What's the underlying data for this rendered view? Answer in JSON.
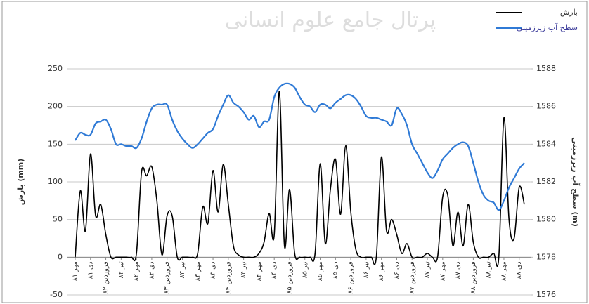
{
  "chart_data": {
    "type": "line",
    "watermark": "پرتال جامع علوم انسانی",
    "ylabel": "بارش (mm)",
    "y2label": "سطح آب زیرزمینی (m)",
    "categories": [
      "مهر ۸۱",
      null,
      null,
      "دی ۸۱",
      null,
      null,
      "فروردین ۸۲",
      null,
      null,
      "تیر ۸۲",
      null,
      null,
      "مهر ۸۲",
      null,
      null,
      "دی ۸۲",
      null,
      null,
      "فروردین ۸۳",
      null,
      null,
      "تیر ۸۳",
      null,
      null,
      "مهر ۸۳",
      null,
      null,
      "دی ۸۳",
      null,
      null,
      "فروردین ۸۴",
      null,
      null,
      "تیر ۸۴",
      null,
      null,
      "مهر ۸۴",
      null,
      null,
      "دی ۸۴",
      null,
      null,
      "فروردین ۸۵",
      null,
      null,
      "تیر ۸۵",
      null,
      null,
      "مهر ۸۵",
      null,
      null,
      "دی ۸۵",
      null,
      null,
      "فروردین ۸۶",
      null,
      null,
      "تیر ۸۶",
      null,
      null,
      "مهر ۸۶",
      null,
      null,
      "دی ۸۶",
      null,
      null,
      "فروردین ۸۷",
      null,
      null,
      "تیر ۸۷",
      null,
      null,
      "مهر ۸۷",
      null,
      null,
      "دی ۸۷",
      null,
      null,
      "فروردین ۸۸",
      null,
      null,
      "تیر ۸۸",
      null,
      null,
      "مهر ۸۸",
      null,
      null,
      "دی ۸۸",
      null
    ],
    "series": [
      {
        "name": "بارش",
        "color": "#000000",
        "values": [
          0,
          88,
          35,
          137,
          55,
          70,
          30,
          0,
          0,
          0,
          0,
          0,
          5,
          113,
          108,
          120,
          75,
          3,
          55,
          55,
          0,
          0,
          0,
          0,
          5,
          67,
          45,
          115,
          60,
          123,
          70,
          15,
          3,
          0,
          0,
          0,
          5,
          20,
          58,
          30,
          220,
          15,
          90,
          5,
          0,
          0,
          0,
          5,
          124,
          18,
          90,
          130,
          57,
          148,
          60,
          10,
          0,
          0,
          0,
          0,
          133,
          35,
          50,
          30,
          5,
          18,
          0,
          0,
          0,
          5,
          0,
          0,
          80,
          82,
          15,
          60,
          15,
          70,
          20,
          0,
          0,
          0,
          5,
          0,
          185,
          50,
          25,
          93,
          70
        ]
      },
      {
        "name": "سطح آب زیرزمینی",
        "color": "#2f7ad6",
        "axis": "y2",
        "values": [
          1584.2,
          1584.6,
          1584.5,
          1584.5,
          1585.1,
          1585.2,
          1585.3,
          1584.8,
          1584.0,
          1584.0,
          1583.9,
          1583.9,
          1583.8,
          1584.3,
          1585.2,
          1585.9,
          1586.1,
          1586.1,
          1586.1,
          1585.3,
          1584.7,
          1584.3,
          1584.0,
          1583.8,
          1584.0,
          1584.3,
          1584.6,
          1584.8,
          1585.5,
          1586.1,
          1586.6,
          1586.2,
          1586.0,
          1585.7,
          1585.3,
          1585.5,
          1584.9,
          1585.2,
          1585.3,
          1586.5,
          1587.0,
          1587.2,
          1587.2,
          1587.0,
          1586.5,
          1586.1,
          1586.0,
          1585.7,
          1586.1,
          1586.1,
          1585.9,
          1586.2,
          1586.4,
          1586.6,
          1586.6,
          1586.4,
          1586.0,
          1585.5,
          1585.4,
          1585.4,
          1585.3,
          1585.2,
          1585.0,
          1585.9,
          1585.6,
          1585.0,
          1584.0,
          1583.5,
          1583.0,
          1582.5,
          1582.2,
          1582.6,
          1583.2,
          1583.5,
          1583.8,
          1584.0,
          1584.1,
          1583.9,
          1583.0,
          1582.0,
          1581.3,
          1581.0,
          1580.9,
          1580.5,
          1581.0,
          1581.7,
          1582.2,
          1582.7,
          1583.0
        ]
      }
    ],
    "ylim": [
      -50,
      250
    ],
    "yticks": [
      -50,
      0,
      50,
      100,
      150,
      200,
      250
    ],
    "y2lim": [
      1576,
      1588
    ],
    "y2ticks": [
      1576,
      1578,
      1580,
      1582,
      1584,
      1586,
      1588
    ],
    "grid": true,
    "legend": "top-right"
  }
}
